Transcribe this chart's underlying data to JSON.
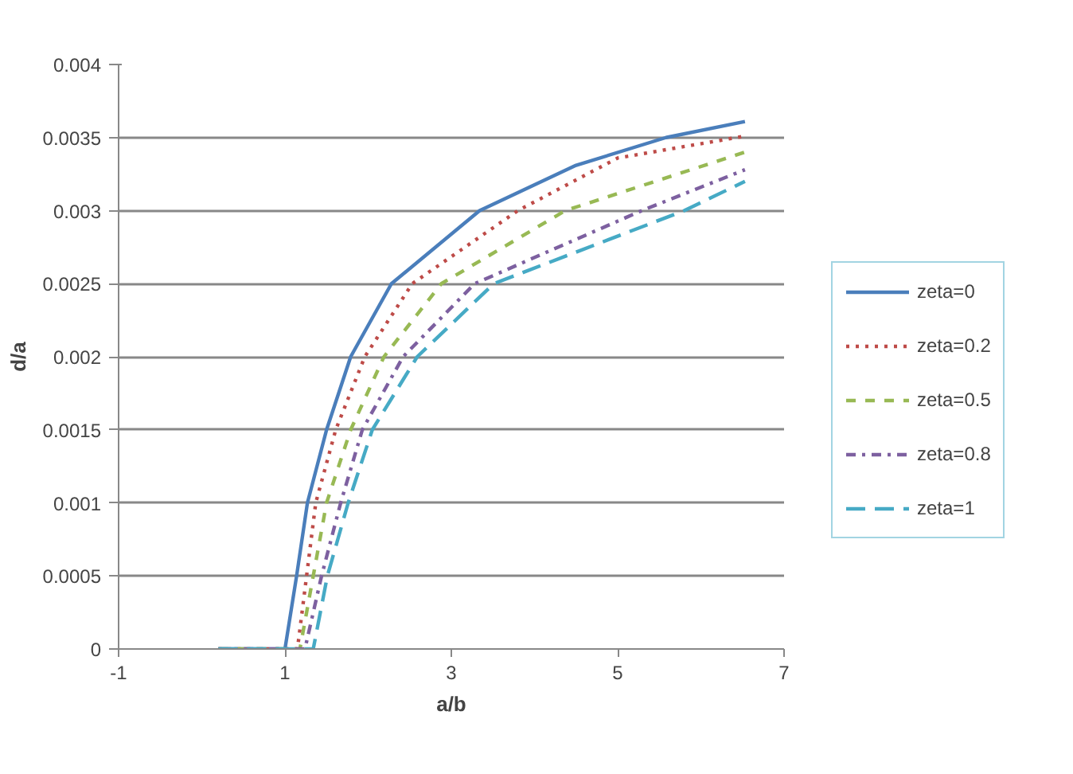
{
  "chart_data": {
    "type": "line",
    "xlabel": "a/b",
    "ylabel": "d/a",
    "xlim": [
      -1,
      7
    ],
    "ylim": [
      0,
      0.004
    ],
    "xticks": [
      -1,
      1,
      3,
      5,
      7
    ],
    "yticks": [
      0,
      0.0005,
      0.001,
      0.0015,
      0.002,
      0.0025,
      0.003,
      0.0035,
      0.004
    ],
    "grid": "y",
    "legend": "right",
    "series": [
      {
        "name": "zeta=0",
        "color": "#4a7ebb",
        "line_style": "solid",
        "x": [
          0.2,
          1.0,
          1.14,
          1.27,
          1.5,
          1.79,
          2.28,
          3.34,
          4.5,
          5.58,
          6.53
        ],
        "values": [
          0,
          0,
          0.0005,
          0.001,
          0.0015,
          0.002,
          0.0025,
          0.003,
          0.00331,
          0.0035,
          0.00361
        ]
      },
      {
        "name": "zeta=0.2",
        "color": "#be4b48",
        "line_style": "dotted",
        "x": [
          0.2,
          1.15,
          1.26,
          1.37,
          1.61,
          1.96,
          2.53,
          3.8,
          5.0,
          6.53
        ],
        "values": [
          0,
          0,
          0.0005,
          0.001,
          0.0015,
          0.002,
          0.0025,
          0.003,
          0.00336,
          0.00351
        ]
      },
      {
        "name": "zeta=0.5",
        "color": "#98b954",
        "line_style": "dashed",
        "x": [
          0.2,
          1.18,
          1.34,
          1.5,
          1.79,
          2.19,
          2.88,
          4.37,
          6.53
        ],
        "values": [
          0,
          0,
          0.0005,
          0.001,
          0.0015,
          0.002,
          0.0025,
          0.003,
          0.0034
        ]
      },
      {
        "name": "zeta=0.8",
        "color": "#7d60a0",
        "line_style": "dashdot",
        "x": [
          0.2,
          1.24,
          1.44,
          1.67,
          1.93,
          2.42,
          3.28,
          5.29,
          6.53
        ],
        "values": [
          0,
          0,
          0.0005,
          0.001,
          0.0015,
          0.002,
          0.0025,
          0.003,
          0.00328
        ]
      },
      {
        "name": "zeta=1",
        "color": "#46aac5",
        "line_style": "dashed",
        "x": [
          0.2,
          1.34,
          1.51,
          1.76,
          2.05,
          2.59,
          3.51,
          5.8,
          6.53
        ],
        "values": [
          0,
          0,
          0.0005,
          0.001,
          0.0015,
          0.002,
          0.0025,
          0.003,
          0.0032
        ]
      }
    ]
  }
}
